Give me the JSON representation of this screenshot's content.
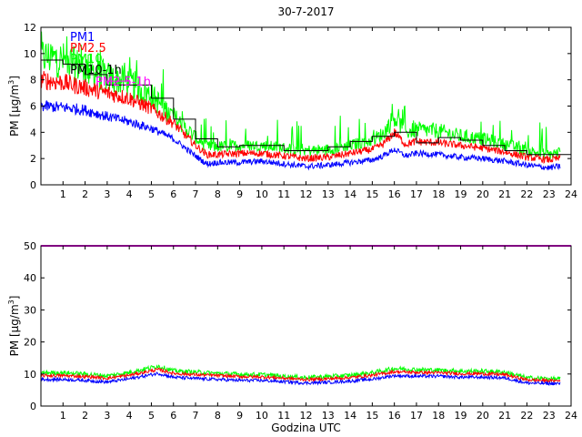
{
  "chart_data": [
    {
      "type": "line",
      "title": "30-7-2017",
      "xlabel": "",
      "ylabel_base": "PM [µg/m",
      "ylabel_sup": "3",
      "ylabel_end": "]",
      "xlim": [
        0,
        24
      ],
      "ylim": [
        0,
        12
      ],
      "xticks": [
        1,
        2,
        3,
        4,
        5,
        6,
        7,
        8,
        9,
        10,
        11,
        12,
        13,
        14,
        15,
        16,
        17,
        18,
        19,
        20,
        21,
        22,
        23,
        24
      ],
      "yticks": [
        0,
        2,
        4,
        6,
        8,
        10,
        12
      ],
      "legend": [
        {
          "label": "PM1",
          "color": "#0000ff"
        },
        {
          "label": "PM2.5",
          "color": "#ff0000"
        },
        {
          "label": "PM10",
          "color": "#00ff00"
        },
        {
          "label": "PM10-1h",
          "color": "#000000"
        },
        {
          "label": "PM2.5-1h",
          "color": "#ff00ff"
        }
      ],
      "series": [
        {
          "name": "PM1",
          "color": "#0000ff",
          "x": [
            0,
            1,
            2,
            3,
            4,
            5,
            6,
            7,
            7.5,
            8,
            9,
            10,
            11,
            12,
            13,
            14,
            15,
            15.5,
            16,
            16.5,
            17,
            18,
            19,
            20,
            21,
            22,
            23,
            23.5
          ],
          "values": [
            6.0,
            5.9,
            5.7,
            5.2,
            4.8,
            4.3,
            3.5,
            2.2,
            1.6,
            1.7,
            1.7,
            1.8,
            1.6,
            1.4,
            1.5,
            1.7,
            1.9,
            2.2,
            2.7,
            2.2,
            2.4,
            2.3,
            2.1,
            2.0,
            1.8,
            1.5,
            1.3,
            1.4
          ]
        },
        {
          "name": "PM2.5",
          "color": "#ff0000",
          "x": [
            0,
            1,
            2,
            3,
            4,
            5,
            6,
            7,
            7.5,
            8,
            9,
            10,
            11,
            12,
            13,
            14,
            15,
            15.5,
            16,
            16.5,
            17,
            18,
            19,
            20,
            21,
            22,
            23,
            23.5
          ],
          "values": [
            8.0,
            7.8,
            7.4,
            7.0,
            6.6,
            5.8,
            4.7,
            3.0,
            2.3,
            2.3,
            2.4,
            2.4,
            2.2,
            2.0,
            2.1,
            2.4,
            2.7,
            3.1,
            4.0,
            3.1,
            3.3,
            3.2,
            3.0,
            2.8,
            2.5,
            2.1,
            1.9,
            2.0
          ]
        },
        {
          "name": "PM10",
          "color": "#00ff00",
          "x": [
            0,
            1,
            2,
            3,
            4,
            5,
            6,
            7,
            7.5,
            8,
            9,
            10,
            11,
            12,
            13,
            14,
            15,
            15.5,
            16,
            16.5,
            17,
            18,
            19,
            20,
            21,
            22,
            23,
            23.5
          ],
          "values": [
            9.8,
            9.5,
            8.9,
            8.2,
            7.8,
            6.8,
            5.2,
            3.6,
            2.9,
            2.9,
            3.0,
            3.0,
            2.8,
            2.6,
            2.7,
            3.0,
            3.4,
            3.9,
            5.2,
            4.0,
            4.2,
            4.1,
            3.7,
            3.5,
            3.1,
            2.6,
            2.3,
            2.5
          ]
        }
      ],
      "hourly_PM10_1h": [
        9.5,
        9.2,
        8.4,
        7.6,
        7.6,
        6.6,
        5.0,
        3.5,
        2.9,
        3.0,
        3.0,
        2.6,
        2.6,
        2.9,
        3.3,
        3.7,
        4.0,
        3.2,
        3.6,
        3.4,
        3.0,
        2.6,
        2.3,
        2.3
      ],
      "hourly_PM25_1h": [
        null,
        null,
        null,
        7.9,
        null,
        null,
        null,
        null,
        null,
        null,
        null,
        null,
        null,
        null,
        null,
        null,
        null,
        null,
        null,
        null,
        null,
        null,
        null,
        null
      ]
    },
    {
      "type": "line",
      "title": "",
      "xlabel": "Godzina UTC",
      "ylabel_base": "PM [µg/m",
      "ylabel_sup": "3",
      "ylabel_end": "]",
      "xlim": [
        0,
        24
      ],
      "ylim": [
        0,
        50
      ],
      "xticks": [
        1,
        2,
        3,
        4,
        5,
        6,
        7,
        8,
        9,
        10,
        11,
        12,
        13,
        14,
        15,
        16,
        17,
        18,
        19,
        20,
        21,
        22,
        23,
        24
      ],
      "yticks": [
        0,
        10,
        20,
        30,
        40,
        50
      ],
      "threshold": {
        "value": 50,
        "color": "#ff00ff"
      },
      "series": [
        {
          "name": "PM1",
          "color": "#0000ff",
          "x": [
            0,
            1,
            2,
            3,
            4,
            5,
            5.3,
            6,
            7,
            8,
            9,
            10,
            11,
            12,
            13,
            14,
            15,
            16,
            17,
            18,
            19,
            20,
            21,
            22,
            23,
            23.5
          ],
          "values": [
            8.3,
            8.3,
            8.0,
            7.5,
            8.5,
            9.8,
            10.2,
            9.0,
            8.6,
            8.3,
            8.0,
            8.0,
            7.6,
            7.2,
            7.4,
            7.8,
            8.4,
            9.5,
            9.3,
            9.3,
            9.0,
            9.0,
            8.8,
            7.2,
            7.0,
            7.0
          ]
        },
        {
          "name": "PM2.5",
          "color": "#ff0000",
          "x": [
            0,
            1,
            2,
            3,
            4,
            5,
            5.3,
            6,
            7,
            8,
            9,
            10,
            11,
            12,
            13,
            14,
            15,
            16,
            17,
            18,
            19,
            20,
            21,
            22,
            23,
            23.5
          ],
          "values": [
            9.5,
            9.5,
            9.2,
            8.7,
            9.6,
            11.0,
            11.4,
            10.2,
            9.8,
            9.5,
            9.2,
            9.1,
            8.7,
            8.3,
            8.5,
            8.9,
            9.6,
            10.7,
            10.5,
            10.4,
            10.1,
            10.1,
            9.8,
            8.2,
            7.9,
            7.9
          ]
        },
        {
          "name": "PM10",
          "color": "#00ff00",
          "x": [
            0,
            1,
            2,
            3,
            4,
            5,
            5.3,
            6,
            7,
            8,
            9,
            10,
            11,
            12,
            13,
            14,
            15,
            16,
            17,
            18,
            19,
            20,
            21,
            22,
            23,
            23.5
          ],
          "values": [
            10.4,
            10.4,
            10.0,
            9.4,
            10.5,
            12.0,
            12.5,
            11.0,
            10.6,
            10.2,
            9.9,
            9.8,
            9.3,
            8.9,
            9.2,
            9.6,
            10.4,
            11.7,
            11.4,
            11.2,
            10.9,
            10.9,
            10.6,
            8.8,
            8.5,
            8.5
          ]
        }
      ]
    }
  ]
}
